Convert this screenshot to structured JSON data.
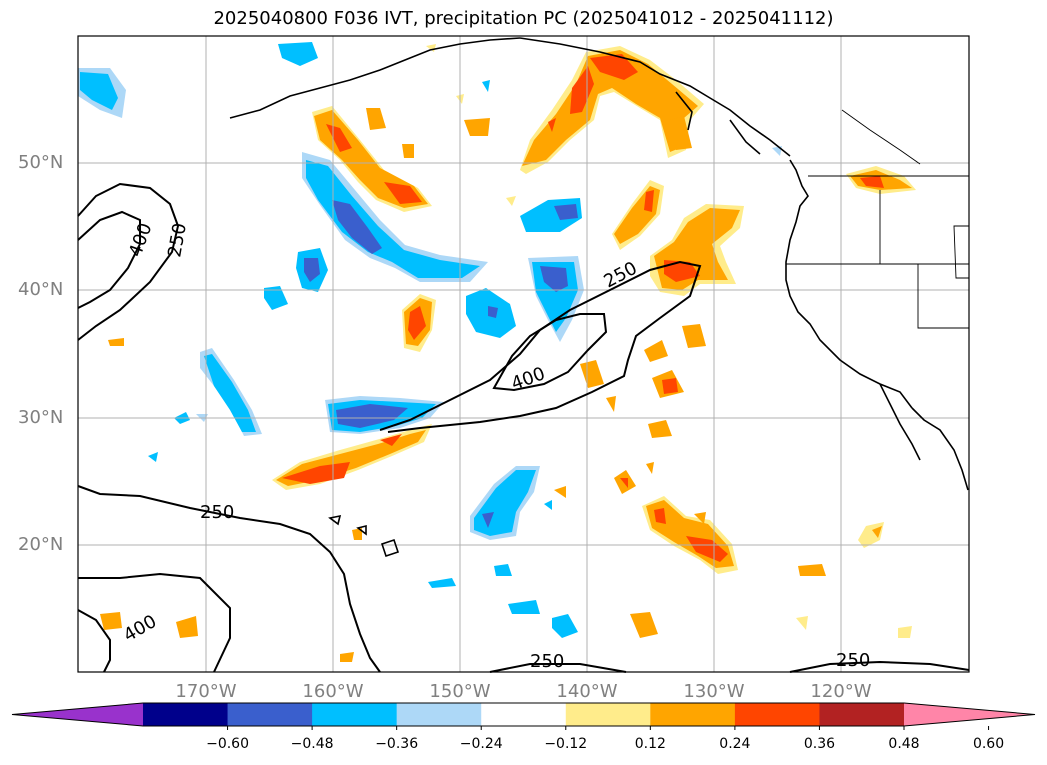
{
  "title": "2025040800 F036 IVT, precipitation PC (2025041012 - 2025041112)",
  "lat_labels": [
    "50°N",
    "40°N",
    "30°N",
    "20°N"
  ],
  "lon_labels": [
    "170°W",
    "160°W",
    "150°W",
    "140°W",
    "130°W",
    "120°W"
  ],
  "contour_labels": [
    "400",
    "250",
    "250",
    "400",
    "250",
    "400",
    "250",
    "250"
  ],
  "colorbar": {
    "colors": [
      "#9932cc",
      "#00008b",
      "#3a5fcd",
      "#00bfff",
      "#add8f7",
      "#ffffff",
      "#ffec8b",
      "#ffa500",
      "#ff4500",
      "#b22222",
      "#ff85a8"
    ],
    "tick_labels": [
      "−0.60",
      "−0.48",
      "−0.36",
      "−0.24",
      "−0.12",
      "0.12",
      "0.24",
      "0.36",
      "0.48",
      "0.60"
    ]
  },
  "colors": {
    "gridline": "#b0b0b0",
    "axis_label": "#808080",
    "coast": "#000000"
  }
}
